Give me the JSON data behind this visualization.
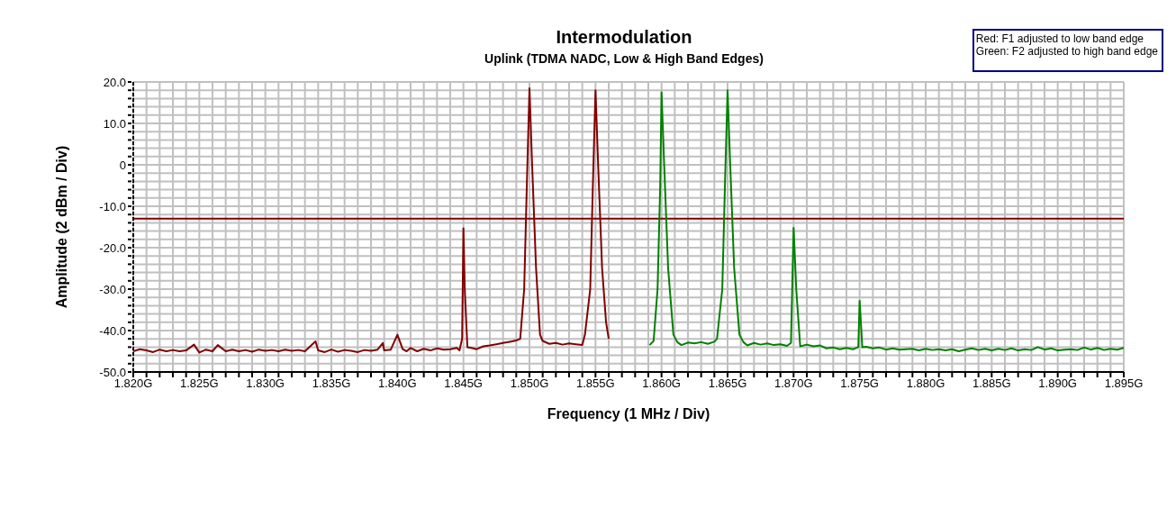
{
  "chart_data": {
    "type": "line",
    "title": "Intermodulation",
    "subtitle": "Uplink (TDMA NADC, Low & High Band Edges)",
    "xlabel": "Frequency (1 MHz / Div)",
    "ylabel": "Amplitude (2 dBm / Div)",
    "annotations": [
      "Red: F1 adjusted to low band edge",
      "Green: F2 adjusted to high band edge"
    ],
    "xlim": [
      1.82,
      1.895
    ],
    "ylim": [
      -50,
      20
    ],
    "grid": true,
    "marker": "none",
    "line_style": "solid",
    "xticks": [
      {
        "value": 1.82,
        "label": "1.820G"
      },
      {
        "value": 1.821,
        "label": null
      },
      {
        "value": 1.822,
        "label": null
      },
      {
        "value": 1.823,
        "label": null
      },
      {
        "value": 1.824,
        "label": null
      },
      {
        "value": 1.825,
        "label": "1.825G"
      },
      {
        "value": 1.826,
        "label": null
      },
      {
        "value": 1.827,
        "label": null
      },
      {
        "value": 1.828,
        "label": null
      },
      {
        "value": 1.829,
        "label": null
      },
      {
        "value": 1.83,
        "label": "1.830G"
      },
      {
        "value": 1.831,
        "label": null
      },
      {
        "value": 1.832,
        "label": null
      },
      {
        "value": 1.833,
        "label": null
      },
      {
        "value": 1.834,
        "label": null
      },
      {
        "value": 1.835,
        "label": "1.835G"
      },
      {
        "value": 1.836,
        "label": null
      },
      {
        "value": 1.837,
        "label": null
      },
      {
        "value": 1.838,
        "label": null
      },
      {
        "value": 1.839,
        "label": null
      },
      {
        "value": 1.84,
        "label": "1.840G"
      },
      {
        "value": 1.841,
        "label": null
      },
      {
        "value": 1.842,
        "label": null
      },
      {
        "value": 1.843,
        "label": null
      },
      {
        "value": 1.844,
        "label": null
      },
      {
        "value": 1.845,
        "label": "1.845G"
      },
      {
        "value": 1.846,
        "label": null
      },
      {
        "value": 1.847,
        "label": null
      },
      {
        "value": 1.848,
        "label": null
      },
      {
        "value": 1.849,
        "label": null
      },
      {
        "value": 1.85,
        "label": "1.850G"
      },
      {
        "value": 1.851,
        "label": null
      },
      {
        "value": 1.852,
        "label": null
      },
      {
        "value": 1.853,
        "label": null
      },
      {
        "value": 1.854,
        "label": null
      },
      {
        "value": 1.855,
        "label": "1.855G"
      },
      {
        "value": 1.856,
        "label": null
      },
      {
        "value": 1.857,
        "label": null
      },
      {
        "value": 1.858,
        "label": null
      },
      {
        "value": 1.859,
        "label": null
      },
      {
        "value": 1.86,
        "label": "1.860G"
      },
      {
        "value": 1.861,
        "label": null
      },
      {
        "value": 1.862,
        "label": null
      },
      {
        "value": 1.863,
        "label": null
      },
      {
        "value": 1.864,
        "label": null
      },
      {
        "value": 1.865,
        "label": "1.865G"
      },
      {
        "value": 1.866,
        "label": null
      },
      {
        "value": 1.867,
        "label": null
      },
      {
        "value": 1.868,
        "label": null
      },
      {
        "value": 1.869,
        "label": null
      },
      {
        "value": 1.87,
        "label": "1.870G"
      },
      {
        "value": 1.871,
        "label": null
      },
      {
        "value": 1.872,
        "label": null
      },
      {
        "value": 1.873,
        "label": null
      },
      {
        "value": 1.874,
        "label": null
      },
      {
        "value": 1.875,
        "label": "1.875G"
      },
      {
        "value": 1.876,
        "label": null
      },
      {
        "value": 1.877,
        "label": null
      },
      {
        "value": 1.878,
        "label": null
      },
      {
        "value": 1.879,
        "label": null
      },
      {
        "value": 1.88,
        "label": "1.880G"
      },
      {
        "value": 1.881,
        "label": null
      },
      {
        "value": 1.882,
        "label": null
      },
      {
        "value": 1.883,
        "label": null
      },
      {
        "value": 1.884,
        "label": null
      },
      {
        "value": 1.885,
        "label": "1.885G"
      },
      {
        "value": 1.886,
        "label": null
      },
      {
        "value": 1.887,
        "label": null
      },
      {
        "value": 1.888,
        "label": null
      },
      {
        "value": 1.889,
        "label": null
      },
      {
        "value": 1.89,
        "label": "1.890G"
      },
      {
        "value": 1.891,
        "label": null
      },
      {
        "value": 1.892,
        "label": null
      },
      {
        "value": 1.893,
        "label": null
      },
      {
        "value": 1.894,
        "label": null
      },
      {
        "value": 1.895,
        "label": "1.895G"
      }
    ],
    "yticks": [
      {
        "value": -50,
        "label": "-50.0"
      },
      {
        "value": -48,
        "label": null
      },
      {
        "value": -46,
        "label": null
      },
      {
        "value": -44,
        "label": null
      },
      {
        "value": -42,
        "label": null
      },
      {
        "value": -40,
        "label": "-40.0"
      },
      {
        "value": -38,
        "label": null
      },
      {
        "value": -36,
        "label": null
      },
      {
        "value": -34,
        "label": null
      },
      {
        "value": -32,
        "label": null
      },
      {
        "value": -30,
        "label": "-30.0"
      },
      {
        "value": -28,
        "label": null
      },
      {
        "value": -26,
        "label": null
      },
      {
        "value": -24,
        "label": null
      },
      {
        "value": -22,
        "label": null
      },
      {
        "value": -20,
        "label": "-20.0"
      },
      {
        "value": -18,
        "label": null
      },
      {
        "value": -16,
        "label": null
      },
      {
        "value": -14,
        "label": null
      },
      {
        "value": -12,
        "label": null
      },
      {
        "value": -10,
        "label": "-10.0"
      },
      {
        "value": -8,
        "label": null
      },
      {
        "value": -6,
        "label": null
      },
      {
        "value": -4,
        "label": null
      },
      {
        "value": -2,
        "label": null
      },
      0,
      {
        "value": 2,
        "label": null
      },
      {
        "value": 4,
        "label": null
      },
      {
        "value": 6,
        "label": null
      },
      {
        "value": 8,
        "label": null
      },
      {
        "value": 10,
        "label": "10.0"
      },
      {
        "value": 12,
        "label": null
      },
      {
        "value": 14,
        "label": null
      },
      {
        "value": 16,
        "label": null
      },
      {
        "value": 18,
        "label": null
      },
      {
        "value": 20,
        "label": "20.0"
      }
    ],
    "ref_lines": [
      {
        "axis": "y",
        "value": -13,
        "color": "#800000",
        "line_style": "solid"
      }
    ],
    "series": [
      {
        "color": "#800000",
        "x": [
          1.82,
          1.8205,
          1.821,
          1.8215,
          1.822,
          1.8225,
          1.823,
          1.8235,
          1.824,
          1.8246,
          1.825,
          1.8255,
          1.826,
          1.8264,
          1.827,
          1.8275,
          1.828,
          1.8285,
          1.829,
          1.8295,
          1.83,
          1.8305,
          1.831,
          1.8315,
          1.832,
          1.8325,
          1.833,
          1.8338,
          1.834,
          1.8345,
          1.835,
          1.8355,
          1.836,
          1.8365,
          1.837,
          1.8375,
          1.838,
          1.8385,
          1.8389,
          1.839,
          1.8395,
          1.84,
          1.8404,
          1.8407,
          1.841,
          1.8415,
          1.842,
          1.8425,
          1.843,
          1.8435,
          1.844,
          1.8445,
          1.8447,
          1.8449,
          1.845,
          1.8451,
          1.8453,
          1.8456,
          1.846,
          1.8465,
          1.847,
          1.8475,
          1.848,
          1.8485,
          1.849,
          1.8493,
          1.8496,
          1.8498,
          1.85,
          1.8502,
          1.8505,
          1.8508,
          1.851,
          1.8515,
          1.852,
          1.8525,
          1.853,
          1.8535,
          1.854,
          1.8542,
          1.8546,
          1.8548,
          1.855,
          1.8552,
          1.8555,
          1.8558,
          1.856
        ],
        "values": [
          -45,
          -44.5,
          -44.8,
          -45.2,
          -44.6,
          -45,
          -44.7,
          -45,
          -44.8,
          -43.4,
          -45.3,
          -44.6,
          -45,
          -43.5,
          -45,
          -44.6,
          -45,
          -44.7,
          -45.1,
          -44.6,
          -44.9,
          -44.7,
          -45,
          -44.6,
          -44.9,
          -44.7,
          -45,
          -42.6,
          -44.8,
          -45.2,
          -44.6,
          -45.1,
          -44.7,
          -44.9,
          -45.2,
          -44.7,
          -44.9,
          -44.6,
          -43,
          -44.8,
          -44.6,
          -41,
          -44.5,
          -45,
          -44.2,
          -45,
          -44.4,
          -44.8,
          -44.3,
          -44.6,
          -44.5,
          -44.2,
          -44.8,
          -42,
          -15.3,
          -30,
          -44,
          -44.2,
          -44.5,
          -43.8,
          -43.6,
          -43.3,
          -43,
          -42.7,
          -42.4,
          -42,
          -30,
          -5,
          18.5,
          0,
          -25,
          -41,
          -42.5,
          -43.2,
          -43,
          -43.4,
          -43.1,
          -43.3,
          -43.5,
          -41,
          -30,
          -5,
          18,
          0,
          -25,
          -38,
          -42
        ]
      },
      {
        "color": "#008000",
        "x": [
          1.8591,
          1.8594,
          1.8597,
          1.8599,
          1.86,
          1.8602,
          1.8605,
          1.8609,
          1.8612,
          1.8615,
          1.862,
          1.8625,
          1.863,
          1.8635,
          1.864,
          1.8642,
          1.8646,
          1.8648,
          1.865,
          1.8652,
          1.8655,
          1.8659,
          1.8662,
          1.8665,
          1.867,
          1.8675,
          1.868,
          1.8685,
          1.869,
          1.8695,
          1.8698,
          1.87,
          1.8702,
          1.8705,
          1.871,
          1.8715,
          1.872,
          1.8725,
          1.873,
          1.8735,
          1.874,
          1.8745,
          1.8749,
          1.875,
          1.8752,
          1.8755,
          1.876,
          1.8765,
          1.877,
          1.8775,
          1.878,
          1.8785,
          1.879,
          1.8795,
          1.88,
          1.8805,
          1.881,
          1.8815,
          1.882,
          1.8825,
          1.883,
          1.8835,
          1.884,
          1.8845,
          1.885,
          1.8855,
          1.886,
          1.8865,
          1.887,
          1.8875,
          1.888,
          1.8885,
          1.889,
          1.8895,
          1.89,
          1.8905,
          1.891,
          1.8915,
          1.892,
          1.8925,
          1.893,
          1.8935,
          1.894,
          1.8945,
          1.895
        ],
        "values": [
          -43.5,
          -42.5,
          -30,
          -5,
          17.5,
          0,
          -25,
          -41,
          -42.8,
          -43.5,
          -42.9,
          -43.1,
          -42.8,
          -43.2,
          -42.7,
          -42,
          -30,
          -5,
          18,
          0,
          -25,
          -41,
          -42.8,
          -43.6,
          -43,
          -43.4,
          -43.1,
          -43.5,
          -43.3,
          -43.7,
          -43,
          -15.2,
          -30,
          -43.8,
          -43.4,
          -43.8,
          -43.6,
          -44.3,
          -44.1,
          -44.5,
          -44.2,
          -44.5,
          -44,
          -32.8,
          -44,
          -43.9,
          -44.3,
          -44.1,
          -44.6,
          -44.3,
          -44.6,
          -44.5,
          -44.4,
          -44.8,
          -44.4,
          -44.7,
          -44.5,
          -44.8,
          -44.5,
          -45,
          -44.6,
          -44.3,
          -44.7,
          -44.4,
          -44.8,
          -44.4,
          -44.7,
          -44.3,
          -44.8,
          -44.5,
          -44.7,
          -44,
          -44.6,
          -44.3,
          -44.8,
          -44.6,
          -44.5,
          -44.7,
          -44.1,
          -44.6,
          -44.2,
          -44.7,
          -44.4,
          -44.6,
          -44.2
        ]
      }
    ]
  }
}
